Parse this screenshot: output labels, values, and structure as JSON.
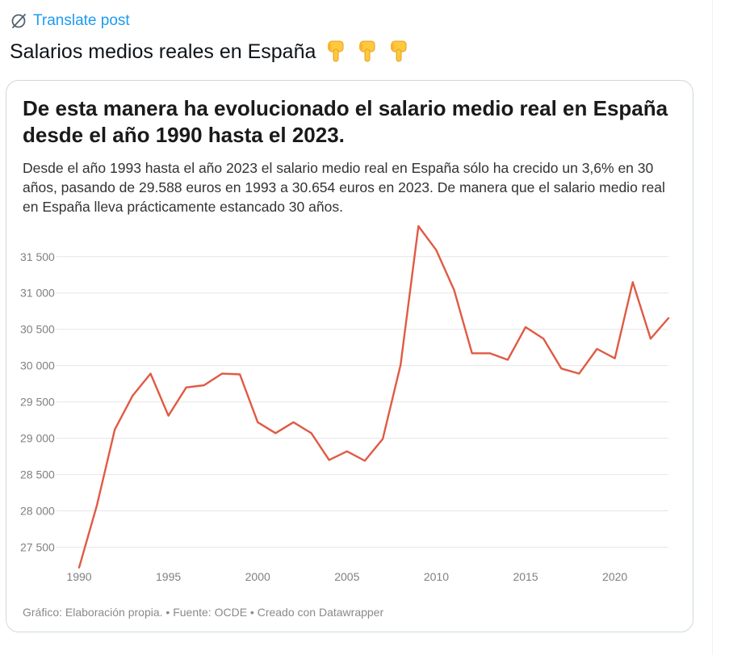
{
  "translate": {
    "label": "Translate post",
    "icon": "globe-slash-icon"
  },
  "post": {
    "text": "Salarios medios reales en España",
    "emoji_icons": [
      "backhand-index-pointing-down-icon",
      "backhand-index-pointing-down-icon",
      "backhand-index-pointing-down-icon"
    ]
  },
  "colors": {
    "link": "#1d9bf0",
    "line": "#e05a44",
    "grid": "#e6e6e6",
    "card_border": "#cfd9de"
  },
  "chart_data": {
    "type": "line",
    "title": "De esta manera ha evolucionado el salario medio real en España desde el año 1990 hasta el 2023.",
    "subtitle": "Desde el año 1993 hasta el año 2023 el salario medio real en España sólo ha crecido un 3,6% en 30 años, pasando de 29.588 euros en 1993 a 30.654 euros en 2023. De manera que el salario medio real en España lleva prácticamente estancado 30 años.",
    "xlabel": "",
    "ylabel": "",
    "xlim": [
      1990,
      2023
    ],
    "ylim": [
      27250,
      31920
    ],
    "grid": true,
    "y_ticks": [
      {
        "value": 27500,
        "label": "27 500"
      },
      {
        "value": 28000,
        "label": "28 000"
      },
      {
        "value": 28500,
        "label": "28 500"
      },
      {
        "value": 29000,
        "label": "29 000"
      },
      {
        "value": 29500,
        "label": "29 500"
      },
      {
        "value": 30000,
        "label": "30 000"
      },
      {
        "value": 30500,
        "label": "30 500"
      },
      {
        "value": 31000,
        "label": "31 000"
      },
      {
        "value": 31500,
        "label": "31 500"
      }
    ],
    "x_ticks": [
      {
        "value": 1990,
        "label": "1990"
      },
      {
        "value": 1995,
        "label": "1995"
      },
      {
        "value": 2000,
        "label": "2000"
      },
      {
        "value": 2005,
        "label": "2005"
      },
      {
        "value": 2010,
        "label": "2010"
      },
      {
        "value": 2015,
        "label": "2015"
      },
      {
        "value": 2020,
        "label": "2020"
      }
    ],
    "series": [
      {
        "name": "Salario medio real",
        "x": [
          1990,
          1991,
          1992,
          1993,
          1994,
          1995,
          1996,
          1997,
          1998,
          1999,
          2000,
          2001,
          2002,
          2003,
          2004,
          2005,
          2006,
          2007,
          2008,
          2009,
          2010,
          2011,
          2012,
          2013,
          2014,
          2015,
          2016,
          2017,
          2018,
          2019,
          2020,
          2021,
          2022,
          2023
        ],
        "values": [
          27220,
          28080,
          29120,
          29588,
          29890,
          29310,
          29700,
          29730,
          29890,
          29880,
          29220,
          29070,
          29220,
          29070,
          28700,
          28820,
          28690,
          28990,
          30010,
          31920,
          31590,
          31040,
          30170,
          30170,
          30080,
          30530,
          30370,
          29960,
          29890,
          30230,
          30100,
          31150,
          30370,
          30654
        ]
      }
    ],
    "footer": "Gráfico: Elaboración propia. • Fuente: OCDE • Creado con Datawrapper"
  }
}
